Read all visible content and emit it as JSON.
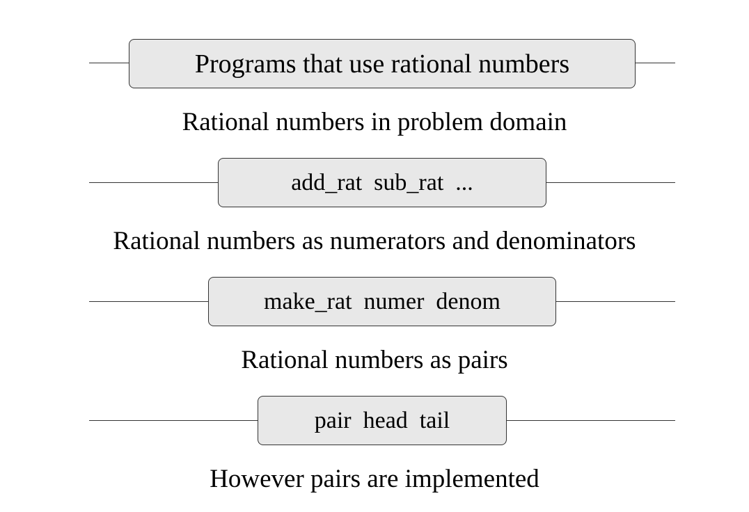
{
  "diagram": {
    "barriers": [
      {
        "label": "Programs that use rational numbers"
      },
      {
        "label": "add_rat  sub_rat  ..."
      },
      {
        "label": "make_rat  numer  denom"
      },
      {
        "label": "pair  head  tail"
      }
    ],
    "levels": [
      "Rational numbers in problem domain",
      "Rational numbers as numerators and denominators",
      "Rational numbers as pairs",
      "However pairs are implemented"
    ]
  }
}
